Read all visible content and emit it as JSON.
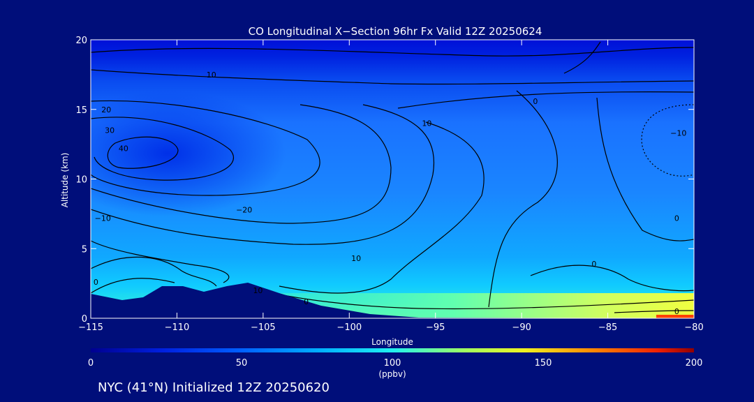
{
  "chart_data": {
    "type": "heatmap",
    "title": "CO Longitudinal X−Section 96hr  Fx Valid 12Z 20250624",
    "xlabel": "Longitude",
    "ylabel": "Altitude (km)",
    "xlim": [
      -115,
      -80
    ],
    "ylim": [
      0,
      20
    ],
    "x_ticks": [
      -115,
      -110,
      -105,
      -100,
      -95,
      -90,
      -85,
      -80
    ],
    "x_tick_labels": [
      "−115",
      "−110",
      "−105",
      "−100",
      "−95",
      "−90",
      "−85",
      "−80"
    ],
    "y_ticks": [
      0,
      5,
      10,
      15,
      20
    ],
    "y_tick_labels": [
      "0",
      "5",
      "10",
      "15",
      "20"
    ],
    "colorbar": {
      "min": 0,
      "max": 200,
      "ticks": [
        0,
        50,
        100,
        150,
        200
      ],
      "tick_labels": [
        "0",
        "50",
        "100",
        "150",
        "200"
      ],
      "unit": "(ppbv)"
    },
    "contour_labels": [
      {
        "text": "10",
        "lon": -108.0,
        "alt": 17.5
      },
      {
        "text": "20",
        "lon": -114.1,
        "alt": 15.0
      },
      {
        "text": "30",
        "lon": -113.9,
        "alt": 13.5
      },
      {
        "text": "40",
        "lon": -113.1,
        "alt": 12.2
      },
      {
        "text": "−10",
        "lon": -114.3,
        "alt": 7.2
      },
      {
        "text": "−20",
        "lon": -106.1,
        "alt": 7.8
      },
      {
        "text": "10",
        "lon": -99.6,
        "alt": 4.3
      },
      {
        "text": "0",
        "lon": -114.7,
        "alt": 2.6
      },
      {
        "text": "10",
        "lon": -105.3,
        "alt": 2.0
      },
      {
        "text": "0",
        "lon": -102.5,
        "alt": 1.2
      },
      {
        "text": "0",
        "lon": -89.2,
        "alt": 15.6
      },
      {
        "text": "10",
        "lon": -95.5,
        "alt": 14.0
      },
      {
        "text": "−10",
        "lon": -80.9,
        "alt": 13.3
      },
      {
        "text": "0",
        "lon": -81.0,
        "alt": 7.2
      },
      {
        "text": "0",
        "lon": -85.8,
        "alt": 3.9
      },
      {
        "text": "0",
        "lon": -81.0,
        "alt": 0.5
      }
    ]
  },
  "footer": "NYC (41°N) Initialized 12Z 20250620",
  "colors": {
    "background": "#000e7a",
    "surface_low": "#f0ff40",
    "surface_high": "#ff2000"
  }
}
